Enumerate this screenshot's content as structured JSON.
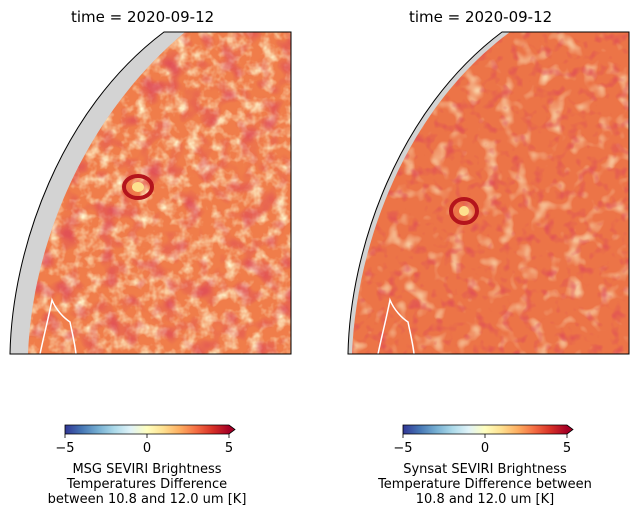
{
  "chart_data": [
    {
      "type": "heatmap",
      "title": "time = 2020-09-12",
      "colorbar": {
        "label_lines": [
          "MSG SEVIRI Brightness",
          "Temperatures Difference",
          "between 10.8 and 12.0 um [K]"
        ],
        "ticks": [
          -5,
          0,
          5
        ],
        "vmin": -5,
        "vmax": 5,
        "extend": "max",
        "colormap": "RdYlBu_r"
      }
    },
    {
      "type": "heatmap",
      "title": "time = 2020-09-12",
      "colorbar": {
        "label_lines": [
          "Synsat SEVIRI Brightness",
          "Temperature Difference between",
          "10.8 and 12.0 um [K]"
        ],
        "ticks": [
          -5,
          0,
          5
        ],
        "vmin": -5,
        "vmax": 5,
        "extend": "max",
        "colormap": "RdYlBu_r"
      }
    }
  ],
  "colors": {
    "space": "#d3d3d3",
    "base": "#f07d4a",
    "warm": "#fde08e",
    "hot": "#b4141c",
    "coast": "#ffffff"
  }
}
